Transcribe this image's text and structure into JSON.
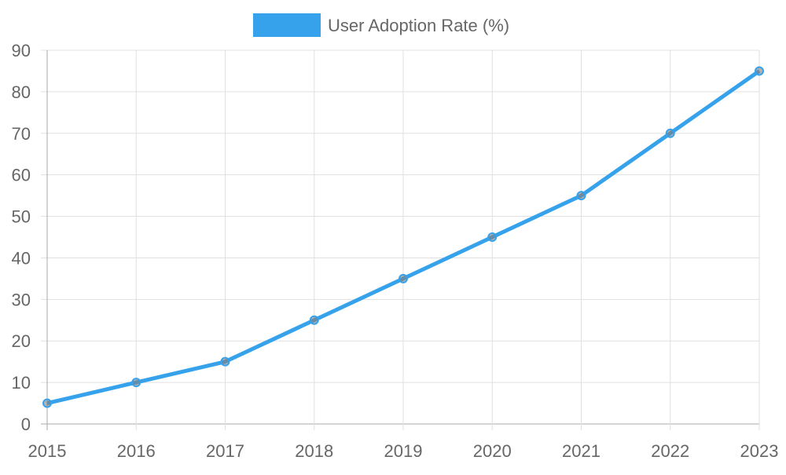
{
  "chart_data": {
    "type": "line",
    "title": "",
    "xlabel": "",
    "ylabel": "",
    "categories": [
      "2015",
      "2016",
      "2017",
      "2018",
      "2019",
      "2020",
      "2021",
      "2022",
      "2023"
    ],
    "series": [
      {
        "name": "User Adoption Rate (%)",
        "values": [
          5,
          10,
          15,
          25,
          35,
          45,
          55,
          70,
          85
        ]
      }
    ],
    "ylim": [
      0,
      90
    ],
    "yticks": [
      "0",
      "10",
      "20",
      "30",
      "40",
      "50",
      "60",
      "70",
      "80",
      "90"
    ],
    "grid": true,
    "legend": "top",
    "colors": {
      "line": "#36a2eb",
      "point_fill": "rgba(128,128,128,0.6)",
      "grid": "#e0e0e0",
      "axis": "#a8a8a8"
    }
  }
}
